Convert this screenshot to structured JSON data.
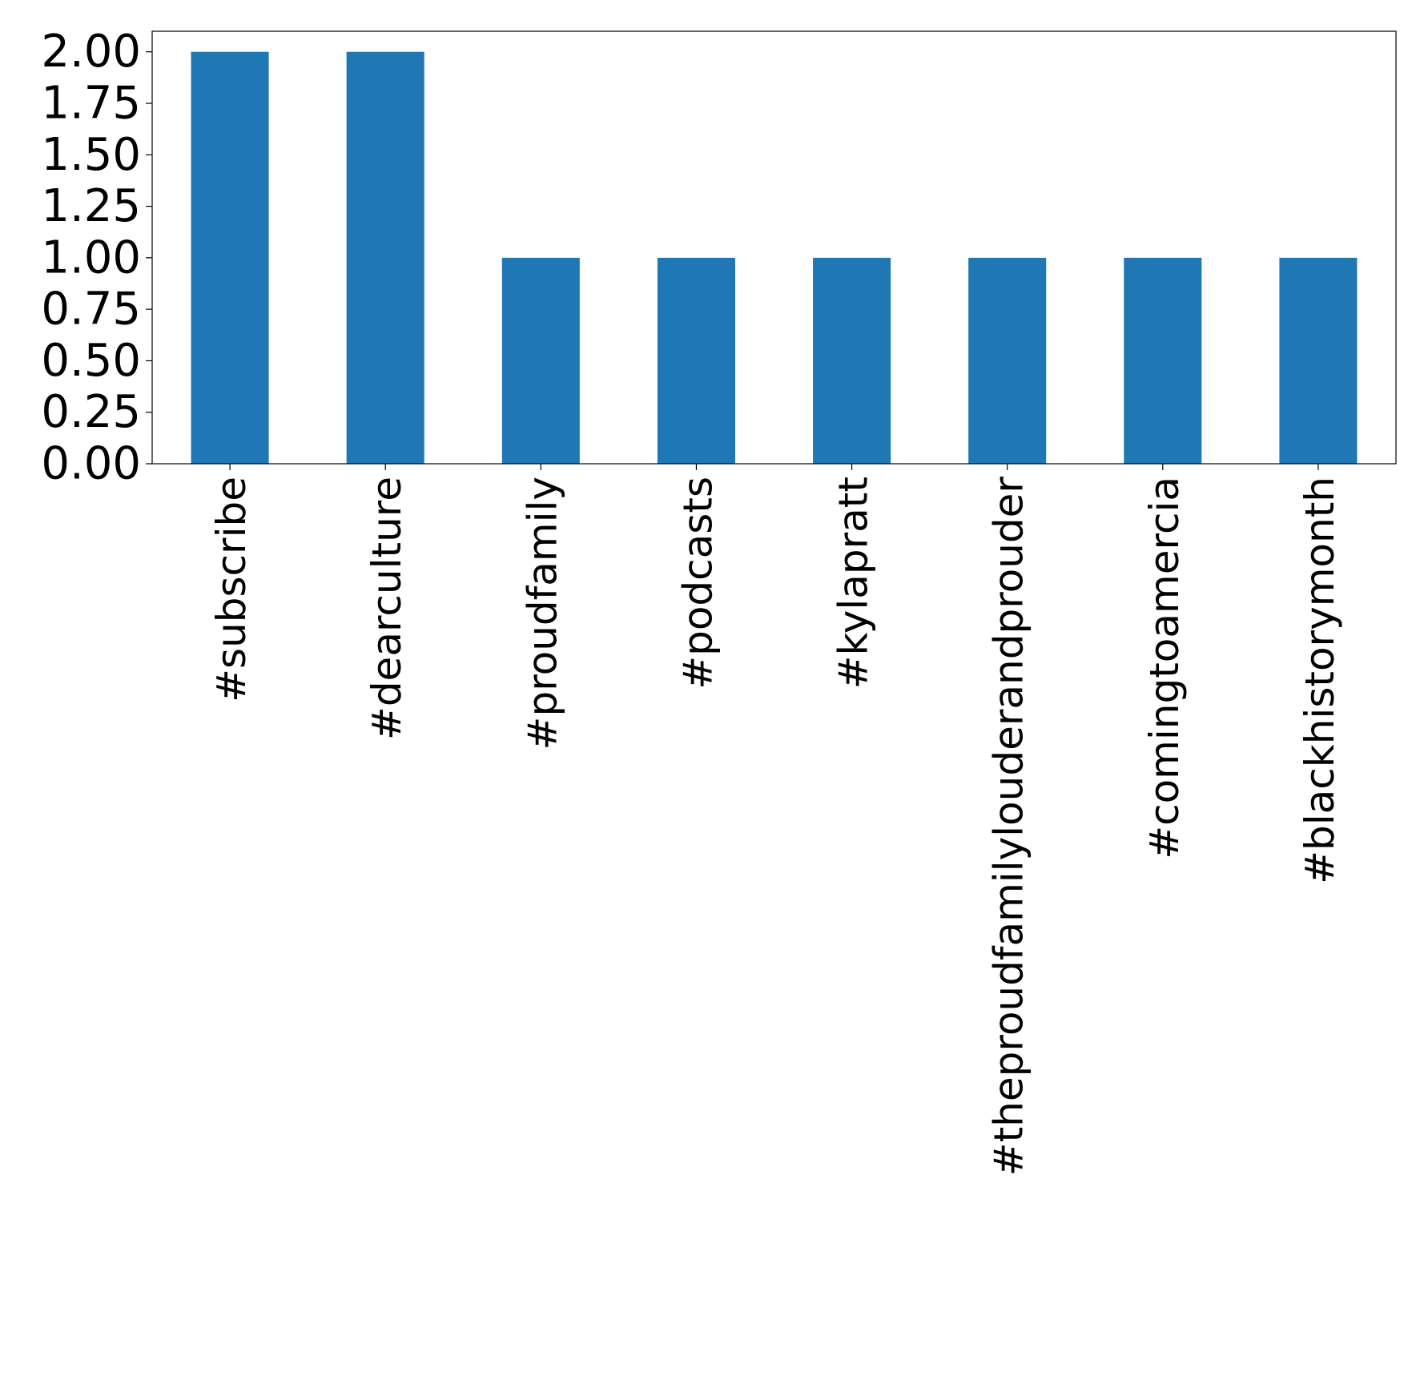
{
  "chart_data": {
    "type": "bar",
    "title": "",
    "xlabel": "",
    "ylabel": "",
    "categories": [
      "#subscribe",
      "#dearculture",
      "#proudfamily",
      "#podcasts",
      "#kylapratt",
      "#theproudfamilylouderandprouder",
      "#comingtoamercia",
      "#blackhistorymonth"
    ],
    "values": [
      2,
      2,
      1,
      1,
      1,
      1,
      1,
      1
    ],
    "ylim": [
      0,
      2.1
    ],
    "yticks": [
      "0.00",
      "0.25",
      "0.50",
      "0.75",
      "1.00",
      "1.25",
      "1.50",
      "1.75",
      "2.00"
    ],
    "grid": false,
    "legend": "none",
    "bar_color": "#1f77b4"
  }
}
